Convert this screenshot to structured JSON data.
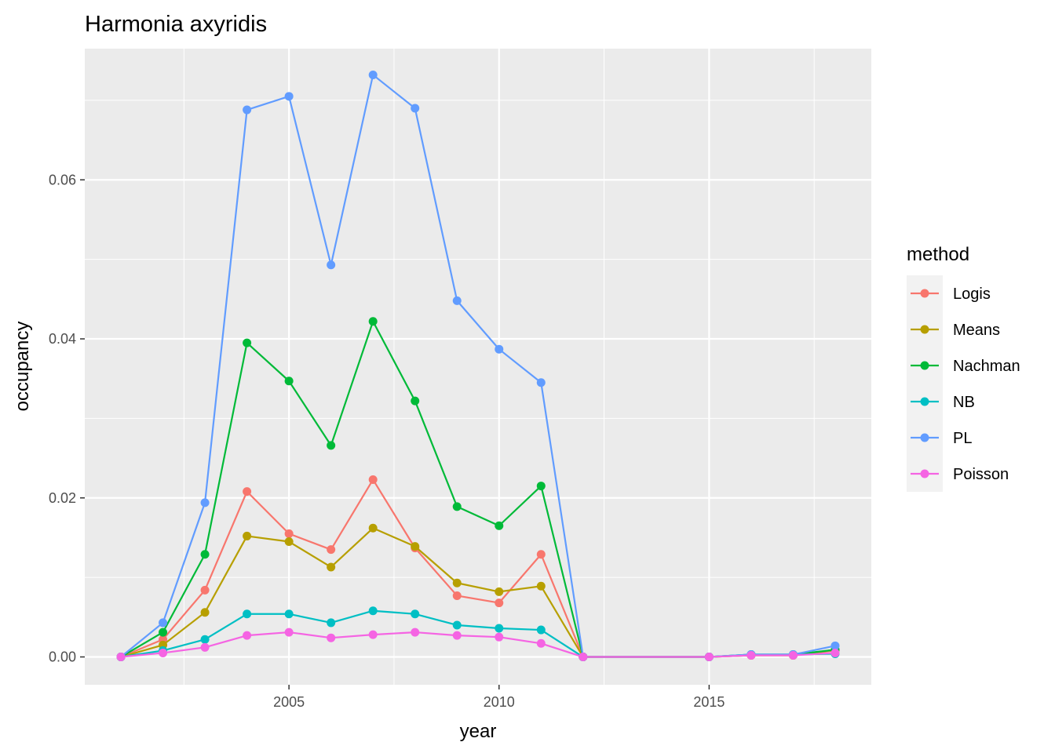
{
  "chart_data": {
    "type": "line",
    "title": "Harmonia axyridis",
    "xlabel": "year",
    "ylabel": "occupancy",
    "xlim": [
      2000.14,
      2018.86
    ],
    "ylim": [
      -0.0035,
      0.0765
    ],
    "x_ticks": [
      2005,
      2010,
      2015
    ],
    "x_tick_labels": [
      "2005",
      "2010",
      "2015"
    ],
    "y_ticks": [
      0,
      0.02,
      0.04,
      0.06
    ],
    "y_tick_labels": [
      "0.00",
      "0.02",
      "0.04",
      "0.06"
    ],
    "grid": true,
    "legend": {
      "title": "method",
      "position": "right"
    },
    "x": [
      2001,
      2002,
      2003,
      2004,
      2005,
      2006,
      2007,
      2008,
      2009,
      2010,
      2011,
      2012,
      2015,
      2016,
      2017,
      2018
    ],
    "series": [
      {
        "name": "Logis",
        "color": "#F8766D",
        "values": [
          0,
          0.0022,
          0.0084,
          0.0208,
          0.0155,
          0.0135,
          0.0223,
          0.0137,
          0.0077,
          0.0068,
          0.0129,
          0,
          0,
          0.0002,
          0.0002,
          0.0008
        ]
      },
      {
        "name": "Means",
        "color": "#B79F00",
        "values": [
          0,
          0.0015,
          0.0056,
          0.0152,
          0.0145,
          0.0113,
          0.0162,
          0.0139,
          0.0093,
          0.0082,
          0.0089,
          0,
          0,
          0.0002,
          0.0002,
          0.0009
        ]
      },
      {
        "name": "Nachman",
        "color": "#00BA38",
        "values": [
          0,
          0.0031,
          0.0129,
          0.0395,
          0.0347,
          0.0266,
          0.0422,
          0.0322,
          0.0189,
          0.0165,
          0.0215,
          0,
          0,
          0.0003,
          0.0003,
          0.0009
        ]
      },
      {
        "name": "NB",
        "color": "#00BFC4",
        "values": [
          0,
          0.0008,
          0.0022,
          0.0054,
          0.0054,
          0.0043,
          0.0058,
          0.0054,
          0.004,
          0.0036,
          0.0034,
          0,
          0,
          0.0003,
          0.0003,
          0.0004
        ]
      },
      {
        "name": "PL",
        "color": "#619CFF",
        "values": [
          0,
          0.0043,
          0.0194,
          0.0688,
          0.0705,
          0.0493,
          0.0732,
          0.069,
          0.0448,
          0.0387,
          0.0345,
          0,
          0,
          0.0003,
          0.0003,
          0.0014
        ]
      },
      {
        "name": "Poisson",
        "color": "#F564E3",
        "values": [
          0,
          0.0005,
          0.0012,
          0.0027,
          0.0031,
          0.0024,
          0.0028,
          0.0031,
          0.0027,
          0.0025,
          0.0017,
          0,
          0,
          0.0002,
          0.0002,
          0.0005
        ]
      }
    ]
  }
}
